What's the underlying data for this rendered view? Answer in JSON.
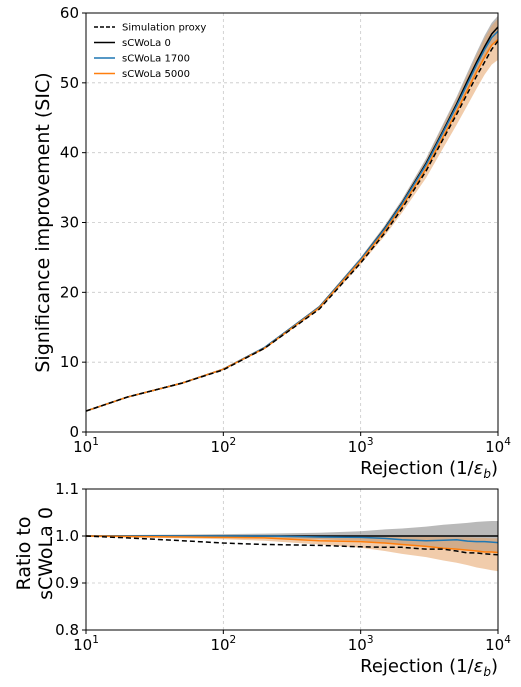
{
  "chart_data": [
    {
      "type": "line",
      "title": "",
      "xlabel": "Rejection (1/ε_b)",
      "ylabel": "Significance improvement (SIC)",
      "xscale": "log",
      "xlim": [
        10,
        10000
      ],
      "ylim": [
        0,
        60
      ],
      "xticks": [
        10,
        100,
        1000,
        10000
      ],
      "xtick_labels": [
        {
          "base": "10",
          "exp": "1"
        },
        {
          "base": "10",
          "exp": "2"
        },
        {
          "base": "10",
          "exp": "3"
        },
        {
          "base": "10",
          "exp": "4"
        }
      ],
      "yticks": [
        0,
        10,
        20,
        30,
        40,
        50,
        60
      ],
      "ytick_labels": [
        "0",
        "10",
        "20",
        "30",
        "40",
        "50",
        "60"
      ],
      "grid": true,
      "legend_position": "top-left",
      "x": [
        10,
        20,
        50,
        100,
        200,
        500,
        1000,
        1500,
        2000,
        3000,
        4000,
        5000,
        6000,
        7000,
        8000,
        9000,
        10000
      ],
      "series": [
        {
          "name": "Simulation proxy",
          "color": "#000000",
          "dash": "dashed",
          "values": [
            3.0,
            5.0,
            7.0,
            8.9,
            12.0,
            17.6,
            24.2,
            28.5,
            32.0,
            37.4,
            42.0,
            45.5,
            48.5,
            51.0,
            53.0,
            54.8,
            56.0
          ]
        },
        {
          "name": "sCWoLa 0",
          "color": "#000000",
          "dash": "solid",
          "values": [
            3.0,
            5.0,
            7.0,
            9.0,
            12.1,
            17.9,
            24.7,
            29.2,
            32.8,
            38.5,
            43.2,
            47.0,
            50.3,
            53.0,
            55.2,
            57.0,
            58.0
          ],
          "band_lower": [
            2.95,
            4.95,
            6.95,
            8.95,
            12.0,
            17.7,
            24.4,
            28.8,
            32.3,
            37.8,
            42.3,
            46.0,
            49.0,
            51.6,
            53.6,
            55.3,
            56.2
          ],
          "band_upper": [
            3.05,
            5.05,
            7.05,
            9.05,
            12.2,
            18.1,
            25.0,
            29.6,
            33.3,
            39.2,
            44.2,
            48.0,
            51.5,
            54.4,
            56.8,
            58.6,
            59.6
          ]
        },
        {
          "name": "sCWoLa 1700",
          "color": "#1f77b4",
          "dash": "solid",
          "values": [
            3.0,
            5.0,
            7.0,
            9.0,
            12.1,
            17.9,
            24.7,
            29.1,
            32.7,
            38.3,
            43.0,
            46.7,
            49.9,
            52.6,
            54.8,
            56.5,
            57.4
          ]
        },
        {
          "name": "sCWoLa 5000",
          "color": "#ff7f0e",
          "dash": "solid",
          "values": [
            3.0,
            5.0,
            7.0,
            9.0,
            12.0,
            17.8,
            24.5,
            28.8,
            32.3,
            37.7,
            42.3,
            45.9,
            49.0,
            51.6,
            53.7,
            55.4,
            56.2
          ],
          "band_lower": [
            2.95,
            4.95,
            6.95,
            8.95,
            11.9,
            17.5,
            24.0,
            28.1,
            31.4,
            36.4,
            40.7,
            44.0,
            46.8,
            49.2,
            51.2,
            52.6,
            53.3
          ],
          "band_upper": [
            3.05,
            5.05,
            7.05,
            9.05,
            12.1,
            18.1,
            24.9,
            29.4,
            33.1,
            38.9,
            43.9,
            47.7,
            51.1,
            54.0,
            56.4,
            58.2,
            59.2
          ]
        }
      ]
    },
    {
      "type": "line",
      "title": "",
      "xlabel": "Rejection (1/ε_b)",
      "ylabel": "Ratio to sCWoLa 0",
      "xscale": "log",
      "xlim": [
        10,
        10000
      ],
      "ylim": [
        0.8,
        1.1
      ],
      "xticks": [
        10,
        100,
        1000,
        10000
      ],
      "xtick_labels": [
        {
          "base": "10",
          "exp": "1"
        },
        {
          "base": "10",
          "exp": "2"
        },
        {
          "base": "10",
          "exp": "3"
        },
        {
          "base": "10",
          "exp": "4"
        }
      ],
      "yticks": [
        0.8,
        0.9,
        1.0,
        1.1
      ],
      "ytick_labels": [
        "0.8",
        "0.9",
        "1.0",
        "1.1"
      ],
      "grid": true,
      "x": [
        10,
        20,
        50,
        100,
        200,
        500,
        1000,
        1500,
        2000,
        3000,
        4000,
        5000,
        6000,
        7000,
        8000,
        9000,
        10000
      ],
      "series": [
        {
          "name": "Simulation proxy",
          "color": "#000000",
          "dash": "dashed",
          "values": [
            1.0,
            0.996,
            0.99,
            0.985,
            0.982,
            0.98,
            0.977,
            0.976,
            0.976,
            0.972,
            0.972,
            0.968,
            0.964,
            0.964,
            0.962,
            0.961,
            0.96
          ]
        },
        {
          "name": "sCWoLa 0",
          "color": "#000000",
          "dash": "solid",
          "values": [
            1.0,
            1.0,
            1.0,
            1.0,
            1.0,
            1.0,
            1.0,
            1.0,
            1.0,
            1.0,
            1.0,
            1.0,
            1.0,
            1.0,
            1.0,
            1.0,
            1.0
          ],
          "band_lower": [
            0.998,
            0.998,
            0.997,
            0.996,
            0.995,
            0.993,
            0.99,
            0.985,
            0.982,
            0.978,
            0.975,
            0.972,
            0.97,
            0.968,
            0.966,
            0.965,
            0.965
          ],
          "band_upper": [
            1.002,
            1.002,
            1.003,
            1.004,
            1.005,
            1.007,
            1.01,
            1.014,
            1.016,
            1.02,
            1.024,
            1.026,
            1.028,
            1.03,
            1.031,
            1.032,
            1.032
          ]
        },
        {
          "name": "sCWoLa 1700",
          "color": "#1f77b4",
          "dash": "solid",
          "values": [
            1.0,
            1.0,
            1.0,
            1.0,
            1.0,
            0.998,
            0.997,
            0.995,
            0.992,
            0.99,
            0.991,
            0.992,
            0.989,
            0.988,
            0.988,
            0.987,
            0.986
          ]
        },
        {
          "name": "sCWoLa 5000",
          "color": "#ff7f0e",
          "dash": "solid",
          "values": [
            1.0,
            0.999,
            0.998,
            0.997,
            0.996,
            0.99,
            0.988,
            0.985,
            0.982,
            0.978,
            0.974,
            0.972,
            0.97,
            0.968,
            0.966,
            0.966,
            0.965
          ],
          "band_lower": [
            0.998,
            0.997,
            0.995,
            0.993,
            0.99,
            0.982,
            0.975,
            0.968,
            0.962,
            0.955,
            0.948,
            0.943,
            0.938,
            0.933,
            0.93,
            0.927,
            0.925
          ],
          "band_upper": [
            1.002,
            1.001,
            1.001,
            1.001,
            1.002,
            0.998,
            0.998,
            0.998,
            0.998,
            0.998,
            0.998,
            0.997,
            0.997,
            0.996,
            0.996,
            0.995,
            0.995
          ]
        }
      ]
    }
  ]
}
